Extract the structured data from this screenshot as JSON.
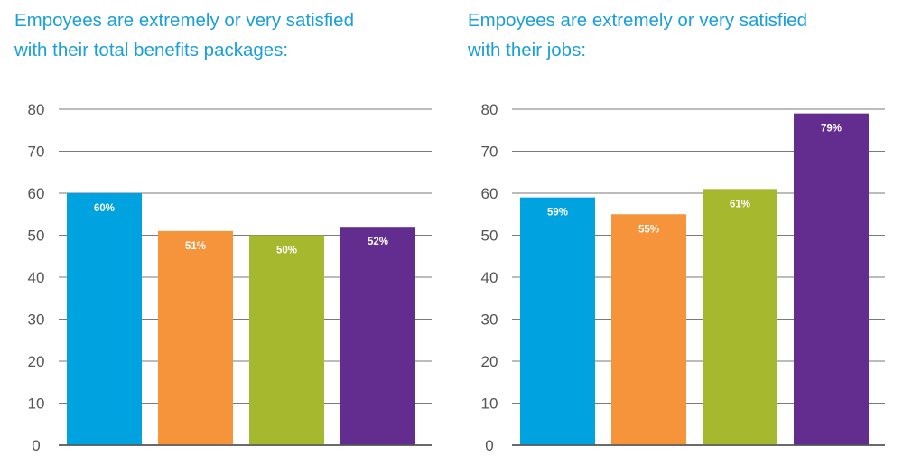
{
  "chart_data": [
    {
      "type": "bar",
      "title_lines": [
        "Empoyees are extremely or very satisfied",
        "with their total benefits packages:"
      ],
      "categories": [
        "",
        "",
        "",
        ""
      ],
      "values": [
        60,
        51,
        50,
        52
      ],
      "data_labels": [
        "60%",
        "51%",
        "50%",
        "52%"
      ],
      "colors": [
        "#00a3e0",
        "#f5943a",
        "#a5b82e",
        "#632d8f"
      ],
      "ylim": [
        0,
        80
      ],
      "yticks": [
        0,
        10,
        20,
        30,
        40,
        50,
        60,
        70,
        80
      ],
      "ytick_labels": [
        "0",
        "10",
        "20",
        "30",
        "40",
        "50",
        "60",
        "70",
        "80"
      ],
      "grid": true,
      "legend": "none"
    },
    {
      "type": "bar",
      "title_lines": [
        "Empoyees are extremely or very satisfied",
        "with their jobs:"
      ],
      "categories": [
        "",
        "",
        "",
        ""
      ],
      "values": [
        59,
        55,
        61,
        79
      ],
      "data_labels": [
        "59%",
        "55%",
        "61%",
        "79%"
      ],
      "colors": [
        "#00a3e0",
        "#f5943a",
        "#a5b82e",
        "#632d8f"
      ],
      "ylim": [
        0,
        80
      ],
      "yticks": [
        0,
        10,
        20,
        30,
        40,
        50,
        60,
        70,
        80
      ],
      "ytick_labels": [
        "0",
        "10",
        "20",
        "30",
        "40",
        "50",
        "60",
        "70",
        "80"
      ],
      "grid": true,
      "legend": "none"
    }
  ]
}
